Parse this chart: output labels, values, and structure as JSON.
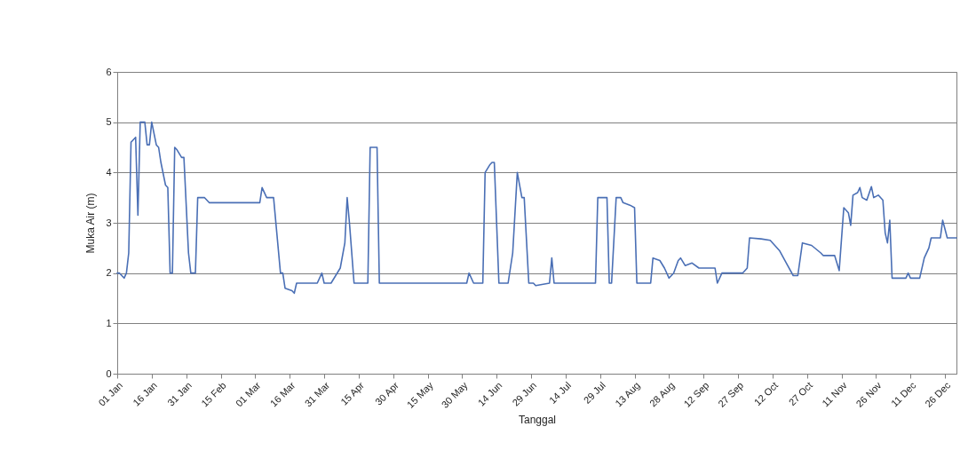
{
  "chart_data": {
    "type": "line",
    "xlabel": "Tanggal",
    "ylabel": "Muka Air (m)",
    "grid": "y",
    "legend": false,
    "marker": "none",
    "line_style": "solid",
    "ylim": [
      0,
      6
    ],
    "yticks": [
      0,
      1,
      2,
      3,
      4,
      5,
      6
    ],
    "xlim": [
      "--01-01",
      "--12-31"
    ],
    "xticks": [
      {
        "value": "--01-01",
        "label": "01 Jan"
      },
      {
        "value": "--01-16",
        "label": "16 Jan"
      },
      {
        "value": "--01-31",
        "label": "31 Jan"
      },
      {
        "value": "--02-15",
        "label": "15 Feb"
      },
      {
        "value": "--03-01",
        "label": "01 Mar"
      },
      {
        "value": "--03-16",
        "label": "16 Mar"
      },
      {
        "value": "--03-31",
        "label": "31 Mar"
      },
      {
        "value": "--04-15",
        "label": "15 Apr"
      },
      {
        "value": "--04-30",
        "label": "30 Apr"
      },
      {
        "value": "--05-15",
        "label": "15 May"
      },
      {
        "value": "--05-30",
        "label": "30 May"
      },
      {
        "value": "--06-14",
        "label": "14 Jun"
      },
      {
        "value": "--06-29",
        "label": "29 Jun"
      },
      {
        "value": "--07-14",
        "label": "14 Jul"
      },
      {
        "value": "--07-29",
        "label": "29 Jul"
      },
      {
        "value": "--08-13",
        "label": "13 Aug"
      },
      {
        "value": "--08-28",
        "label": "28 Aug"
      },
      {
        "value": "--09-12",
        "label": "12 Sep"
      },
      {
        "value": "--09-27",
        "label": "27 Sep"
      },
      {
        "value": "--10-12",
        "label": "12 Oct"
      },
      {
        "value": "--10-27",
        "label": "27 Oct"
      },
      {
        "value": "--11-11",
        "label": "11 Nov"
      },
      {
        "value": "--11-26",
        "label": "26 Nov"
      },
      {
        "value": "--12-11",
        "label": "11 Dec"
      },
      {
        "value": "--12-26",
        "label": "26 Dec"
      }
    ],
    "x": [
      "--01-01",
      "--01-02",
      "--01-04",
      "--01-05",
      "--01-06",
      "--01-07",
      "--01-09",
      "--01-10",
      "--01-11",
      "--01-13",
      "--01-14",
      "--01-15",
      "--01-16",
      "--01-18",
      "--01-19",
      "--01-20",
      "--01-22",
      "--01-23",
      "--01-24",
      "--01-25",
      "--01-26",
      "--01-27",
      "--01-29",
      "--01-30",
      "--02-01",
      "--02-02",
      "--02-04",
      "--02-05",
      "--02-08",
      "--02-10",
      "--03-03",
      "--03-04",
      "--03-06",
      "--03-09",
      "--03-12",
      "--03-13",
      "--03-14",
      "--03-17",
      "--03-18",
      "--03-19",
      "--03-28",
      "--03-30",
      "--03-31",
      "--04-03",
      "--04-05",
      "--04-07",
      "--04-09",
      "--04-10",
      "--04-11",
      "--04-13",
      "--04-19",
      "--04-20",
      "--04-23",
      "--04-24",
      "--06-01",
      "--06-02",
      "--06-04",
      "--06-08",
      "--06-09",
      "--06-11",
      "--06-12",
      "--06-13",
      "--06-15",
      "--06-19",
      "--06-21",
      "--06-23",
      "--06-25",
      "--06-26",
      "--06-28",
      "--06-30",
      "--07-01",
      "--07-07",
      "--07-08",
      "--07-09",
      "--07-27",
      "--07-28",
      "--08-01",
      "--08-02",
      "--08-03",
      "--08-05",
      "--08-07",
      "--08-08",
      "--08-11",
      "--08-13",
      "--08-14",
      "--08-20",
      "--08-21",
      "--08-24",
      "--08-26",
      "--08-28",
      "--08-30",
      "--09-01",
      "--09-02",
      "--09-04",
      "--09-07",
      "--09-10",
      "--09-17",
      "--09-18",
      "--09-20",
      "--09-29",
      "--10-01",
      "--10-02",
      "--10-07",
      "--10-11",
      "--10-15",
      "--10-18",
      "--10-21",
      "--10-23",
      "--10-25",
      "--10-29",
      "--11-02",
      "--11-03",
      "--11-08",
      "--11-10",
      "--11-12",
      "--11-14",
      "--11-15",
      "--11-16",
      "--11-18",
      "--11-19",
      "--11-20",
      "--11-22",
      "--11-24",
      "--11-25",
      "--11-27",
      "--11-29",
      "--11-30",
      "--12-01",
      "--12-02",
      "--12-03",
      "--12-09",
      "--12-10",
      "--12-11",
      "--12-15",
      "--12-17",
      "--12-19",
      "--12-20",
      "--12-24",
      "--12-25",
      "--12-27",
      "--12-31"
    ],
    "series": [
      {
        "color": "#4a6fb5",
        "values": [
          2.0,
          2.0,
          1.9,
          2.0,
          2.4,
          4.6,
          4.7,
          3.15,
          5.0,
          5.0,
          4.55,
          4.55,
          5.0,
          4.55,
          4.5,
          4.2,
          3.75,
          3.7,
          2.0,
          2.0,
          4.5,
          4.45,
          4.3,
          4.3,
          2.4,
          2.0,
          2.0,
          3.5,
          3.5,
          3.4,
          3.4,
          3.7,
          3.5,
          3.5,
          2.0,
          2.0,
          1.7,
          1.65,
          1.6,
          1.8,
          1.8,
          2.0,
          1.8,
          1.8,
          1.95,
          2.1,
          2.6,
          3.5,
          3.0,
          1.8,
          1.8,
          4.5,
          4.5,
          1.8,
          1.8,
          2.0,
          1.8,
          1.8,
          4.0,
          4.15,
          4.2,
          4.2,
          1.8,
          1.8,
          2.4,
          4.0,
          3.5,
          3.5,
          1.8,
          1.8,
          1.75,
          1.8,
          2.3,
          1.8,
          1.8,
          3.5,
          3.5,
          1.8,
          1.8,
          3.5,
          3.5,
          3.4,
          3.35,
          3.3,
          1.8,
          1.8,
          2.3,
          2.25,
          2.1,
          1.9,
          2.0,
          2.25,
          2.3,
          2.15,
          2.2,
          2.1,
          2.1,
          1.8,
          2.0,
          2.0,
          2.1,
          2.7,
          2.68,
          2.65,
          2.45,
          2.2,
          1.95,
          1.95,
          2.6,
          2.55,
          2.4,
          2.35,
          2.35,
          2.05,
          3.3,
          3.2,
          2.95,
          3.55,
          3.6,
          3.7,
          3.5,
          3.45,
          3.72,
          3.5,
          3.55,
          3.45,
          2.8,
          2.6,
          3.05,
          1.9,
          1.9,
          2.0,
          1.9,
          1.9,
          2.3,
          2.5,
          2.7,
          2.7,
          3.05,
          2.7,
          2.7
        ]
      }
    ]
  }
}
